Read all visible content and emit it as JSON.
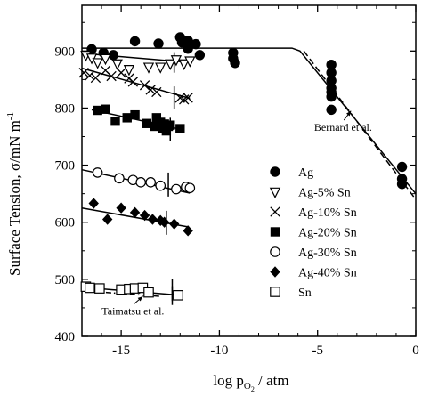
{
  "chart_data": {
    "type": "scatter",
    "xlabel": "log p",
    "xlabel_sub": "O",
    "xlabel_subsub": "2",
    "xlabel_unit": " / atm",
    "ylabel": "Surface Tension, σ/mN m",
    "ylabel_sup": "-1",
    "xlim": [
      -17,
      0
    ],
    "ylim": [
      400,
      980
    ],
    "x_ticks": [
      -15,
      -10,
      -5,
      0
    ],
    "y_ticks": [
      400,
      500,
      600,
      700,
      800,
      900
    ],
    "legend_position": "right-middle",
    "series": [
      {
        "name": "Ag",
        "marker": "filled-circle",
        "fill": "#000000",
        "points": [
          [
            -16.5,
            903
          ],
          [
            -15.9,
            897
          ],
          [
            -15.4,
            893
          ],
          [
            -14.3,
            917
          ],
          [
            -13.1,
            913
          ],
          [
            -12.0,
            924
          ],
          [
            -11.9,
            915
          ],
          [
            -11.6,
            918
          ],
          [
            -11.6,
            904
          ],
          [
            -11.2,
            912
          ],
          [
            -11.0,
            893
          ],
          [
            -9.3,
            897
          ],
          [
            -9.3,
            887
          ],
          [
            -9.2,
            879
          ],
          [
            -4.3,
            876
          ],
          [
            -4.3,
            862
          ],
          [
            -4.3,
            848
          ],
          [
            -4.3,
            835
          ],
          [
            -4.3,
            828
          ],
          [
            -4.3,
            820
          ],
          [
            -4.3,
            797
          ],
          [
            -0.7,
            697
          ],
          [
            -0.7,
            676
          ],
          [
            -0.7,
            667
          ]
        ]
      },
      {
        "name": "Ag-5% Sn",
        "marker": "open-triangle-down",
        "fill": "none",
        "points": [
          [
            -16.8,
            893
          ],
          [
            -16.5,
            888
          ],
          [
            -16.2,
            880
          ],
          [
            -15.8,
            887
          ],
          [
            -15.2,
            878
          ],
          [
            -14.6,
            868
          ],
          [
            -13.6,
            872
          ],
          [
            -13.0,
            872
          ],
          [
            -12.5,
            878
          ],
          [
            -12.2,
            885
          ],
          [
            -11.8,
            878
          ],
          [
            -11.5,
            883
          ]
        ]
      },
      {
        "name": "Ag-10% Sn",
        "marker": "x",
        "fill": "none",
        "points": [
          [
            -16.9,
            862
          ],
          [
            -16.6,
            857
          ],
          [
            -16.3,
            853
          ],
          [
            -15.8,
            866
          ],
          [
            -15.5,
            856
          ],
          [
            -15.0,
            862
          ],
          [
            -14.6,
            852
          ],
          [
            -14.4,
            846
          ],
          [
            -13.8,
            840
          ],
          [
            -13.5,
            832
          ],
          [
            -13.2,
            828
          ],
          [
            -12.0,
            818
          ],
          [
            -11.8,
            815
          ],
          [
            -11.6,
            818
          ]
        ]
      },
      {
        "name": "Ag-20% Sn",
        "marker": "filled-square",
        "fill": "#000000",
        "points": [
          [
            -16.2,
            796
          ],
          [
            -15.8,
            798
          ],
          [
            -15.3,
            777
          ],
          [
            -14.7,
            783
          ],
          [
            -14.3,
            788
          ],
          [
            -13.7,
            773
          ],
          [
            -13.3,
            768
          ],
          [
            -13.2,
            783
          ],
          [
            -13.0,
            775
          ],
          [
            -12.9,
            765
          ],
          [
            -12.8,
            772
          ],
          [
            -12.7,
            760
          ],
          [
            -12.6,
            768
          ],
          [
            -12.5,
            770
          ],
          [
            -12.0,
            764
          ]
        ]
      },
      {
        "name": "Ag-30% Sn",
        "marker": "open-circle",
        "fill": "none",
        "points": [
          [
            -16.2,
            687
          ],
          [
            -15.1,
            677
          ],
          [
            -14.4,
            674
          ],
          [
            -14.0,
            670
          ],
          [
            -13.5,
            670
          ],
          [
            -13.0,
            664
          ],
          [
            -12.2,
            658
          ],
          [
            -11.7,
            662
          ],
          [
            -11.5,
            660
          ]
        ]
      },
      {
        "name": "Ag-40% Sn",
        "marker": "filled-diamond",
        "fill": "#000000",
        "points": [
          [
            -16.4,
            633
          ],
          [
            -15.7,
            605
          ],
          [
            -15.0,
            625
          ],
          [
            -14.3,
            617
          ],
          [
            -13.8,
            612
          ],
          [
            -13.4,
            605
          ],
          [
            -13.0,
            603
          ],
          [
            -12.8,
            600
          ],
          [
            -12.3,
            597
          ],
          [
            -11.6,
            585
          ]
        ]
      },
      {
        "name": "Sn",
        "marker": "open-square",
        "fill": "none",
        "points": [
          [
            -16.8,
            487
          ],
          [
            -16.6,
            485
          ],
          [
            -16.1,
            484
          ],
          [
            -15.0,
            482
          ],
          [
            -14.6,
            483
          ],
          [
            -14.3,
            484
          ],
          [
            -13.9,
            485
          ],
          [
            -13.6,
            477
          ],
          [
            -12.1,
            472
          ]
        ]
      }
    ],
    "fit_lines": [
      {
        "points": [
          [
            -17,
            905
          ],
          [
            -6.3,
            905
          ],
          [
            -5.9,
            900
          ],
          [
            0,
            650
          ]
        ],
        "style": "solid"
      },
      {
        "points": [
          [
            -5.7,
            900
          ],
          [
            0,
            640
          ]
        ],
        "style": "dashed"
      },
      {
        "points": [
          [
            -17,
            896
          ],
          [
            -11.5,
            880
          ]
        ],
        "style": "solid"
      },
      {
        "points": [
          [
            -17,
            870
          ],
          [
            -11.5,
            817
          ]
        ],
        "style": "solid"
      },
      {
        "points": [
          [
            -16.5,
            797
          ],
          [
            -12.0,
            763
          ]
        ],
        "style": "solid"
      },
      {
        "points": [
          [
            -17,
            692
          ],
          [
            -11.5,
            651
          ]
        ],
        "style": "solid"
      },
      {
        "points": [
          [
            -17,
            625
          ],
          [
            -11.6,
            592
          ]
        ],
        "style": "solid"
      },
      {
        "points": [
          [
            -17,
            486
          ],
          [
            -12.0,
            472
          ]
        ],
        "style": "solid"
      },
      {
        "points": [
          [
            -17,
            480
          ],
          [
            -13.0,
            470
          ]
        ],
        "style": "dashdot"
      }
    ],
    "vertical_markers": [
      {
        "x": -12.3,
        "y": [
          862,
          898
        ]
      },
      {
        "x": -12.3,
        "y": [
          798,
          838
        ]
      },
      {
        "x": -12.5,
        "y": [
          742,
          783
        ]
      },
      {
        "x": -12.6,
        "y": [
          645,
          687
        ]
      },
      {
        "x": -12.7,
        "y": [
          578,
          620
        ]
      },
      {
        "x": -12.4,
        "y": [
          455,
          500
        ]
      },
      {
        "x": -12.4,
        "y": [
          462,
          488
        ]
      }
    ],
    "annotations": [
      {
        "text": "Bernard et al.",
        "xy": [
          -3.7,
          760
        ],
        "arrow_to": [
          -3.3,
          795
        ]
      },
      {
        "text": "Taimatsu et al.",
        "xy": [
          -14.4,
          438
        ],
        "arrow_to": [
          -13.9,
          470
        ]
      }
    ]
  }
}
